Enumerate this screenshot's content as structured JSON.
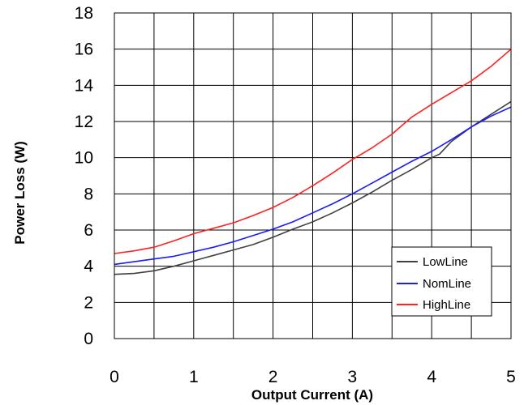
{
  "chart_data": {
    "type": "line",
    "xlabel": "Output Current (A)",
    "ylabel": "Power Loss (W)",
    "xlim": [
      0,
      5
    ],
    "ylim": [
      0,
      18
    ],
    "xticks": [
      "0",
      "1",
      "2",
      "3",
      "4",
      "5"
    ],
    "yticks": [
      "0",
      "2",
      "4",
      "6",
      "8",
      "10",
      "12",
      "14",
      "16",
      "18"
    ],
    "grid": true,
    "legend_position": "bottom-right",
    "series": [
      {
        "name": "LowLine",
        "color": "#404040",
        "x": [
          0,
          0.25,
          0.5,
          0.75,
          1.0,
          1.25,
          1.5,
          1.75,
          2.0,
          2.25,
          2.5,
          2.75,
          3.0,
          3.25,
          3.5,
          3.75,
          4.0,
          4.1,
          4.25,
          4.5,
          4.75,
          5.0
        ],
        "y": [
          3.55,
          3.6,
          3.75,
          4.0,
          4.3,
          4.6,
          4.9,
          5.2,
          5.6,
          6.05,
          6.45,
          6.95,
          7.5,
          8.1,
          8.75,
          9.35,
          10.0,
          10.2,
          10.9,
          11.7,
          12.4,
          13.1
        ]
      },
      {
        "name": "NomLine",
        "color": "#1a1aff",
        "x": [
          0,
          0.25,
          0.5,
          0.75,
          1.0,
          1.25,
          1.5,
          1.75,
          2.0,
          2.25,
          2.5,
          2.75,
          3.0,
          3.25,
          3.5,
          3.75,
          4.0,
          4.25,
          4.5,
          4.75,
          5.0
        ],
        "y": [
          4.1,
          4.25,
          4.4,
          4.55,
          4.8,
          5.05,
          5.35,
          5.7,
          6.05,
          6.45,
          6.95,
          7.45,
          8.0,
          8.6,
          9.2,
          9.8,
          10.35,
          11.0,
          11.7,
          12.3,
          12.8
        ]
      },
      {
        "name": "HighLine",
        "color": "#ff2020",
        "x": [
          0,
          0.25,
          0.5,
          0.75,
          1.0,
          1.25,
          1.5,
          1.75,
          2.0,
          2.25,
          2.5,
          2.75,
          3.0,
          3.25,
          3.5,
          3.75,
          4.0,
          4.25,
          4.5,
          4.75,
          5.0
        ],
        "y": [
          4.7,
          4.85,
          5.05,
          5.4,
          5.8,
          6.1,
          6.4,
          6.8,
          7.25,
          7.8,
          8.45,
          9.15,
          9.9,
          10.55,
          11.3,
          12.25,
          12.95,
          13.6,
          14.25,
          15.05,
          16.0
        ]
      }
    ]
  }
}
